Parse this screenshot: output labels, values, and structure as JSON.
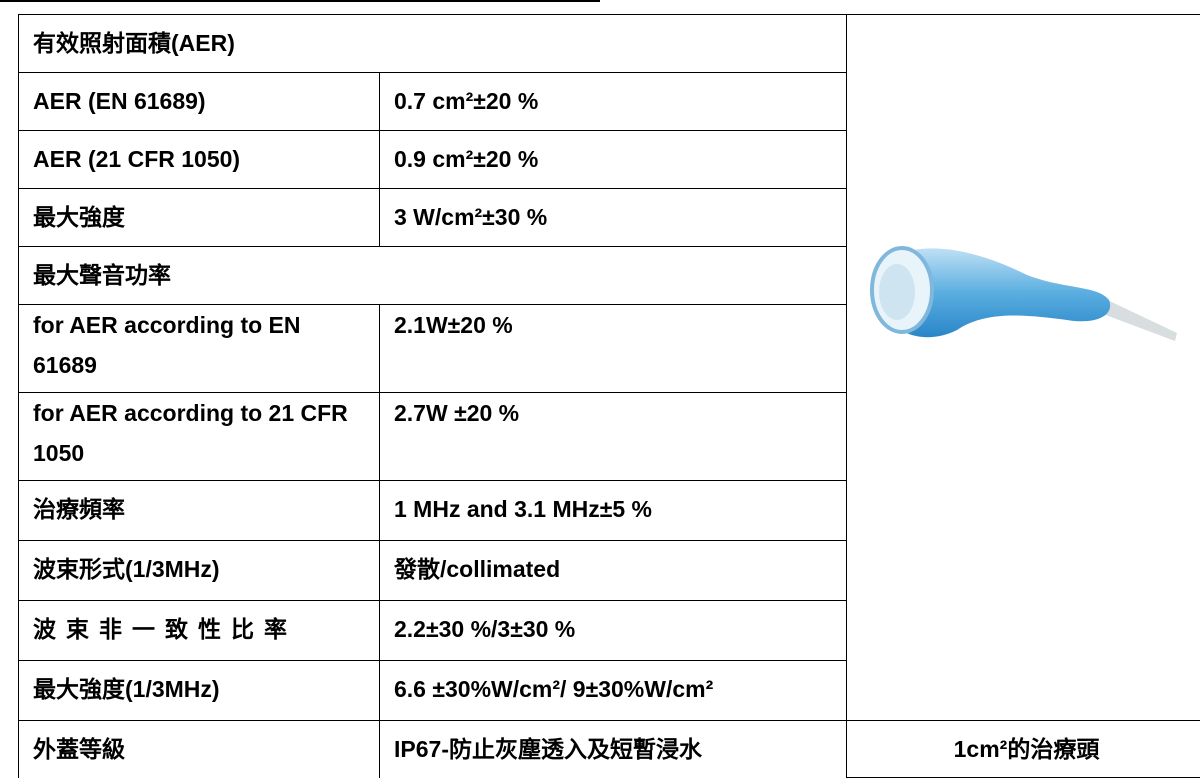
{
  "table": {
    "rows": [
      [
        "有效照射面積(AER)"
      ],
      [
        "AER (EN 61689)",
        "0.7 cm²±20 %"
      ],
      [
        "AER (21 CFR 1050)",
        "0.9 cm²±20 %"
      ],
      [
        "最大強度",
        "3 W/cm²±30 %"
      ],
      [
        "最大聲音功率"
      ],
      [
        "for AER according to EN 61689",
        "2.1W±20 %"
      ],
      [
        "for AER according to 21 CFR 1050",
        "2.7W ±20 %"
      ],
      [
        "治療頻率",
        "1 MHz and 3.1 MHz±5 %"
      ],
      [
        "波束形式(1/3MHz)",
        "發散/collimated"
      ],
      [
        "波束非一致性比率",
        "2.2±30 %/3±30 %"
      ],
      [
        "最大強度(1/3MHz)",
        "6.6 ±30%W/cm²/ 9±30%W/cm²"
      ],
      [
        "外蓋等級",
        "IP67-防止灰塵透入及短暫浸水"
      ]
    ],
    "image_caption": "1cm²的治療頭"
  }
}
